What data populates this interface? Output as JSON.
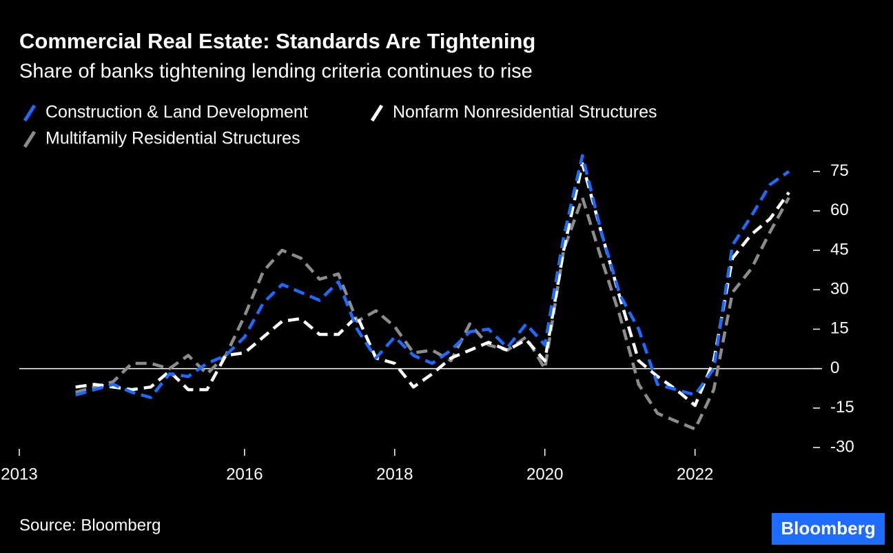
{
  "chart_data": {
    "type": "line",
    "title": "Commercial Real Estate: Standards Are Tightening",
    "subtitle": "Share of banks tightening lending criteria continues to rise",
    "source": "Source: Bloomberg",
    "logo": "Bloomberg",
    "x": [
      2013.75,
      2014,
      2014.25,
      2014.5,
      2014.75,
      2015,
      2015.25,
      2015.5,
      2015.75,
      2016,
      2016.25,
      2016.5,
      2016.75,
      2017,
      2017.25,
      2017.5,
      2017.75,
      2018,
      2018.25,
      2018.5,
      2018.75,
      2019,
      2019.25,
      2019.5,
      2019.75,
      2020,
      2020.25,
      2020.5,
      2020.75,
      2021,
      2021.25,
      2021.5,
      2021.75,
      2022,
      2022.25,
      2022.5,
      2022.75,
      2023,
      2023.25
    ],
    "series": [
      {
        "name": "Construction & Land Development",
        "color": "#1f6bff",
        "values": [
          -10,
          -8,
          -6,
          -9,
          -11,
          -2,
          -3,
          2,
          5,
          12,
          25,
          32,
          29,
          26,
          33,
          15,
          4,
          12,
          5,
          2,
          7,
          14,
          15,
          8,
          17,
          9,
          50,
          81,
          52,
          28,
          15,
          -6,
          -8,
          -10,
          0,
          47,
          58,
          70,
          75
        ]
      },
      {
        "name": "Nonfarm Nonresidential Structures",
        "color": "#ffffff",
        "values": [
          -7,
          -6,
          -7,
          -8,
          -7,
          -1,
          -8,
          -8,
          5,
          6,
          12,
          18,
          19,
          13,
          13,
          20,
          4,
          2,
          -7,
          -2,
          4,
          7,
          10,
          7,
          11,
          3,
          45,
          78,
          52,
          27,
          3,
          -3,
          -8,
          -14,
          3,
          42,
          51,
          57,
          67
        ]
      },
      {
        "name": "Multifamily Residential Structures",
        "color": "#8c8c8c",
        "values": [
          -9,
          -7,
          -5,
          2,
          2,
          0,
          5,
          -2,
          5,
          20,
          37,
          45,
          42,
          34,
          36,
          18,
          22,
          16,
          6,
          7,
          3,
          17,
          9,
          7,
          12,
          0,
          45,
          65,
          42,
          20,
          -6,
          -17,
          -20,
          -23,
          -8,
          29,
          38,
          52,
          65
        ]
      }
    ],
    "xlim": [
      2013,
      2023.6
    ],
    "xticks": [
      2013,
      2016,
      2018,
      2020,
      2022
    ],
    "ylim": [
      -30,
      82.5
    ],
    "yticks": [
      -30,
      -15,
      0,
      15,
      30,
      45,
      60,
      75
    ]
  }
}
